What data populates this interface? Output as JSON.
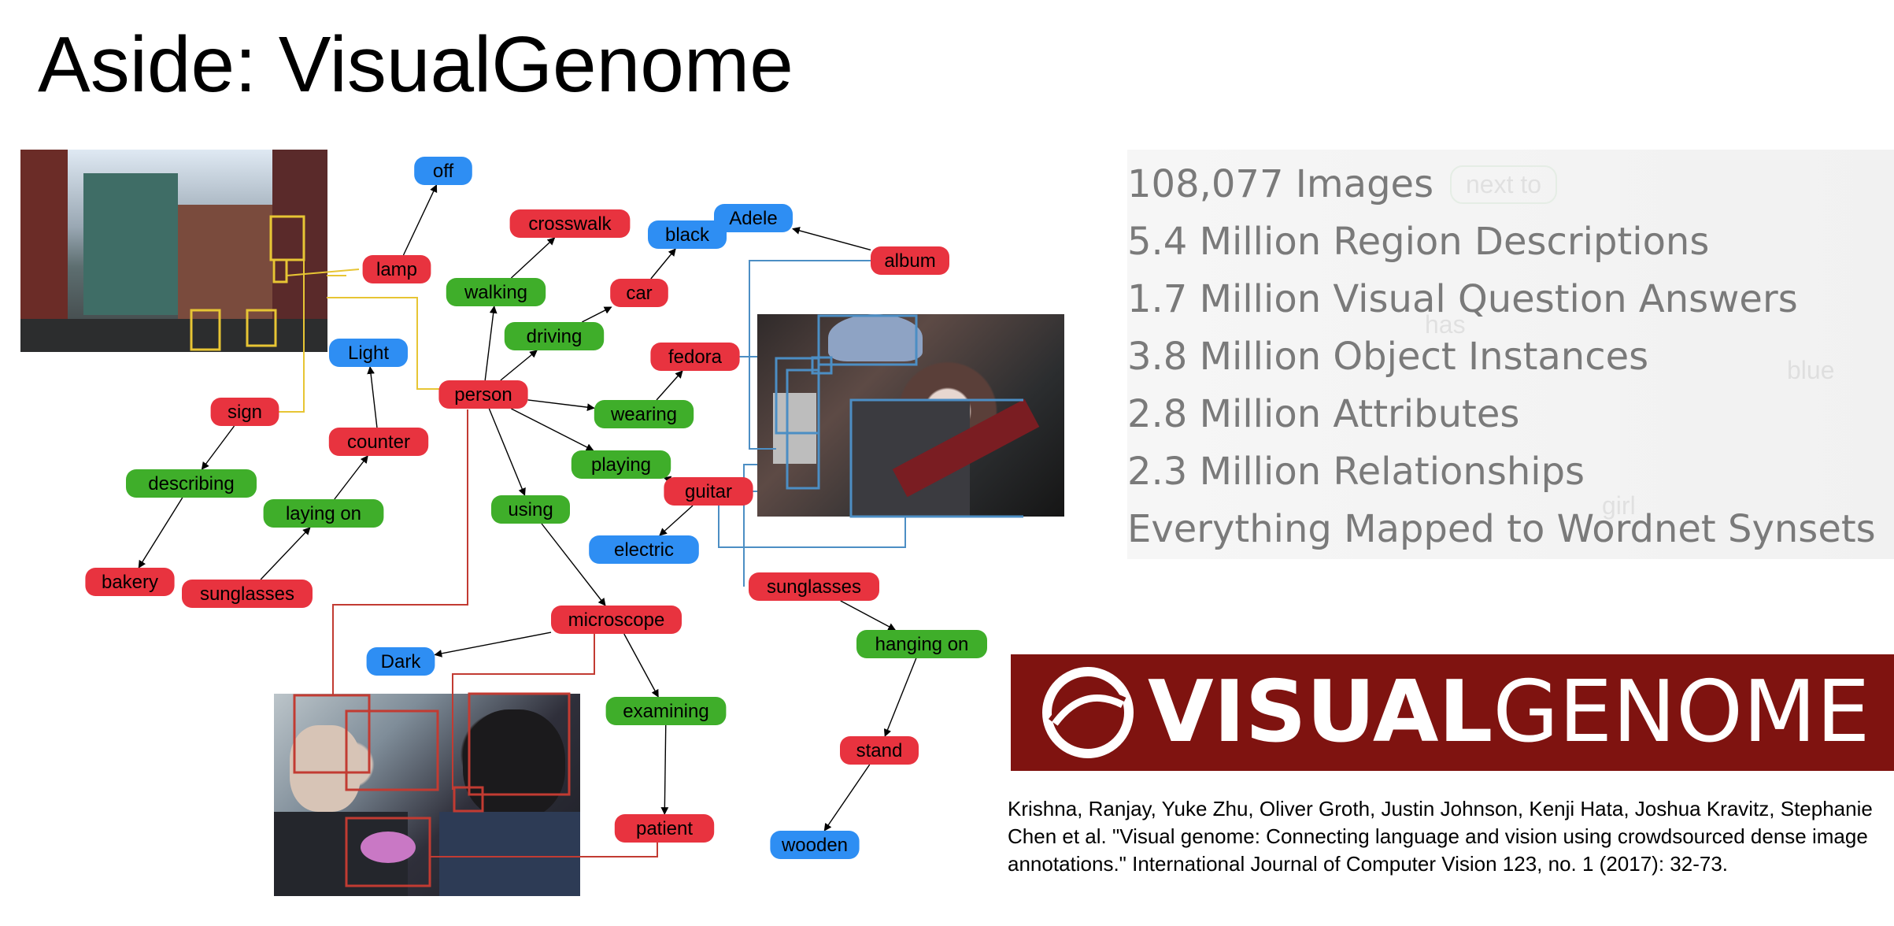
{
  "slide": {
    "title": "Aside: VisualGenome"
  },
  "colors": {
    "object": "#e8333f",
    "attribute": "#2e8ef3",
    "relationship": "#3fae2a",
    "region_street": "#e7c534",
    "region_musician": "#4c8ec4",
    "region_dentist": "#c23b32",
    "logo_background": "#7f1310"
  },
  "scene_graph": {
    "nodes": [
      {
        "id": "off",
        "label": "off",
        "kind": "attribute"
      },
      {
        "id": "lamp",
        "label": "lamp",
        "kind": "object"
      },
      {
        "id": "crosswalk",
        "label": "crosswalk",
        "kind": "object"
      },
      {
        "id": "black",
        "label": "black",
        "kind": "attribute"
      },
      {
        "id": "adele",
        "label": "Adele",
        "kind": "attribute"
      },
      {
        "id": "album",
        "label": "album",
        "kind": "object"
      },
      {
        "id": "walking",
        "label": "walking",
        "kind": "relationship"
      },
      {
        "id": "car",
        "label": "car",
        "kind": "object"
      },
      {
        "id": "driving",
        "label": "driving",
        "kind": "relationship"
      },
      {
        "id": "light",
        "label": "Light",
        "kind": "attribute"
      },
      {
        "id": "fedora",
        "label": "fedora",
        "kind": "object"
      },
      {
        "id": "sign",
        "label": "sign",
        "kind": "object"
      },
      {
        "id": "person",
        "label": "person",
        "kind": "object"
      },
      {
        "id": "wearing",
        "label": "wearing",
        "kind": "relationship"
      },
      {
        "id": "counter",
        "label": "counter",
        "kind": "object"
      },
      {
        "id": "playing",
        "label": "playing",
        "kind": "relationship"
      },
      {
        "id": "describing",
        "label": "describing",
        "kind": "relationship"
      },
      {
        "id": "guitar",
        "label": "guitar",
        "kind": "object"
      },
      {
        "id": "laying_on",
        "label": "laying on",
        "kind": "relationship"
      },
      {
        "id": "using",
        "label": "using",
        "kind": "relationship"
      },
      {
        "id": "electric",
        "label": "electric",
        "kind": "attribute"
      },
      {
        "id": "bakery",
        "label": "bakery",
        "kind": "object"
      },
      {
        "id": "sunglasses_left",
        "label": "sunglasses",
        "kind": "object"
      },
      {
        "id": "sunglasses_right",
        "label": "sunglasses",
        "kind": "object"
      },
      {
        "id": "microscope",
        "label": "microscope",
        "kind": "object"
      },
      {
        "id": "hanging_on",
        "label": "hanging on",
        "kind": "relationship"
      },
      {
        "id": "dark",
        "label": "Dark",
        "kind": "attribute"
      },
      {
        "id": "examining",
        "label": "examining",
        "kind": "relationship"
      },
      {
        "id": "stand",
        "label": "stand",
        "kind": "object"
      },
      {
        "id": "patient",
        "label": "patient",
        "kind": "object"
      },
      {
        "id": "wooden",
        "label": "wooden",
        "kind": "attribute"
      }
    ],
    "edges": [
      [
        "lamp",
        "off"
      ],
      [
        "person",
        "walking"
      ],
      [
        "walking",
        "crosswalk"
      ],
      [
        "person",
        "driving"
      ],
      [
        "driving",
        "car"
      ],
      [
        "car",
        "black"
      ],
      [
        "person",
        "wearing"
      ],
      [
        "wearing",
        "fedora"
      ],
      [
        "person",
        "playing"
      ],
      [
        "playing",
        "guitar"
      ],
      [
        "guitar",
        "electric"
      ],
      [
        "person",
        "using"
      ],
      [
        "using",
        "microscope"
      ],
      [
        "microscope",
        "dark"
      ],
      [
        "microscope",
        "examining"
      ],
      [
        "examining",
        "patient"
      ],
      [
        "album",
        "adele"
      ],
      [
        "sign",
        "describing"
      ],
      [
        "describing",
        "bakery"
      ],
      [
        "sunglasses_left",
        "laying_on"
      ],
      [
        "laying_on",
        "counter"
      ],
      [
        "counter",
        "light"
      ],
      [
        "sunglasses_right",
        "hanging_on"
      ],
      [
        "hanging_on",
        "stand"
      ],
      [
        "stand",
        "wooden"
      ]
    ]
  },
  "stats": [
    "108,077 Images",
    "5.4 Million Region Descriptions",
    "1.7 Million Visual Question Answers",
    "3.8 Million Object Instances",
    "2.8 Million Attributes",
    "2.3 Million Relationships",
    "Everything Mapped to Wordnet Synsets"
  ],
  "stats_background_labels": [
    "next to",
    "has",
    "blue",
    "girl"
  ],
  "logo": {
    "bold_part": "VISUAL",
    "light_part": "GENOME"
  },
  "citation": "Krishna, Ranjay, Yuke Zhu, Oliver Groth, Justin Johnson, Kenji Hata, Joshua Kravitz, Stephanie Chen et al. \"Visual genome: Connecting language and vision using crowdsourced dense image annotations.\" International Journal of Computer Vision 123, no. 1 (2017): 32-73."
}
